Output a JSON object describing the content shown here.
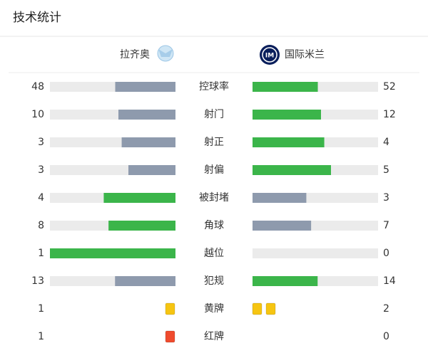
{
  "header": {
    "title": "技术统计"
  },
  "teams": {
    "home": "拉齐奥",
    "away": "国际米兰"
  },
  "colors": {
    "lead": "#3bb54a",
    "trail": "#8e9aad",
    "track": "#ebebeb"
  },
  "stats": [
    {
      "label": "控球率",
      "home": 48,
      "away": 52,
      "type": "bar"
    },
    {
      "label": "射门",
      "home": 10,
      "away": 12,
      "type": "bar"
    },
    {
      "label": "射正",
      "home": 3,
      "away": 4,
      "type": "bar"
    },
    {
      "label": "射偏",
      "home": 3,
      "away": 5,
      "type": "bar"
    },
    {
      "label": "被封堵",
      "home": 4,
      "away": 3,
      "type": "bar"
    },
    {
      "label": "角球",
      "home": 8,
      "away": 7,
      "type": "bar"
    },
    {
      "label": "越位",
      "home": 1,
      "away": 0,
      "type": "bar"
    },
    {
      "label": "犯规",
      "home": 13,
      "away": 14,
      "type": "bar"
    },
    {
      "label": "黄牌",
      "home": 1,
      "away": 2,
      "type": "cards",
      "color": "#f6c512"
    },
    {
      "label": "红牌",
      "home": 1,
      "away": 0,
      "type": "cards",
      "color": "#ef4b2e"
    }
  ]
}
